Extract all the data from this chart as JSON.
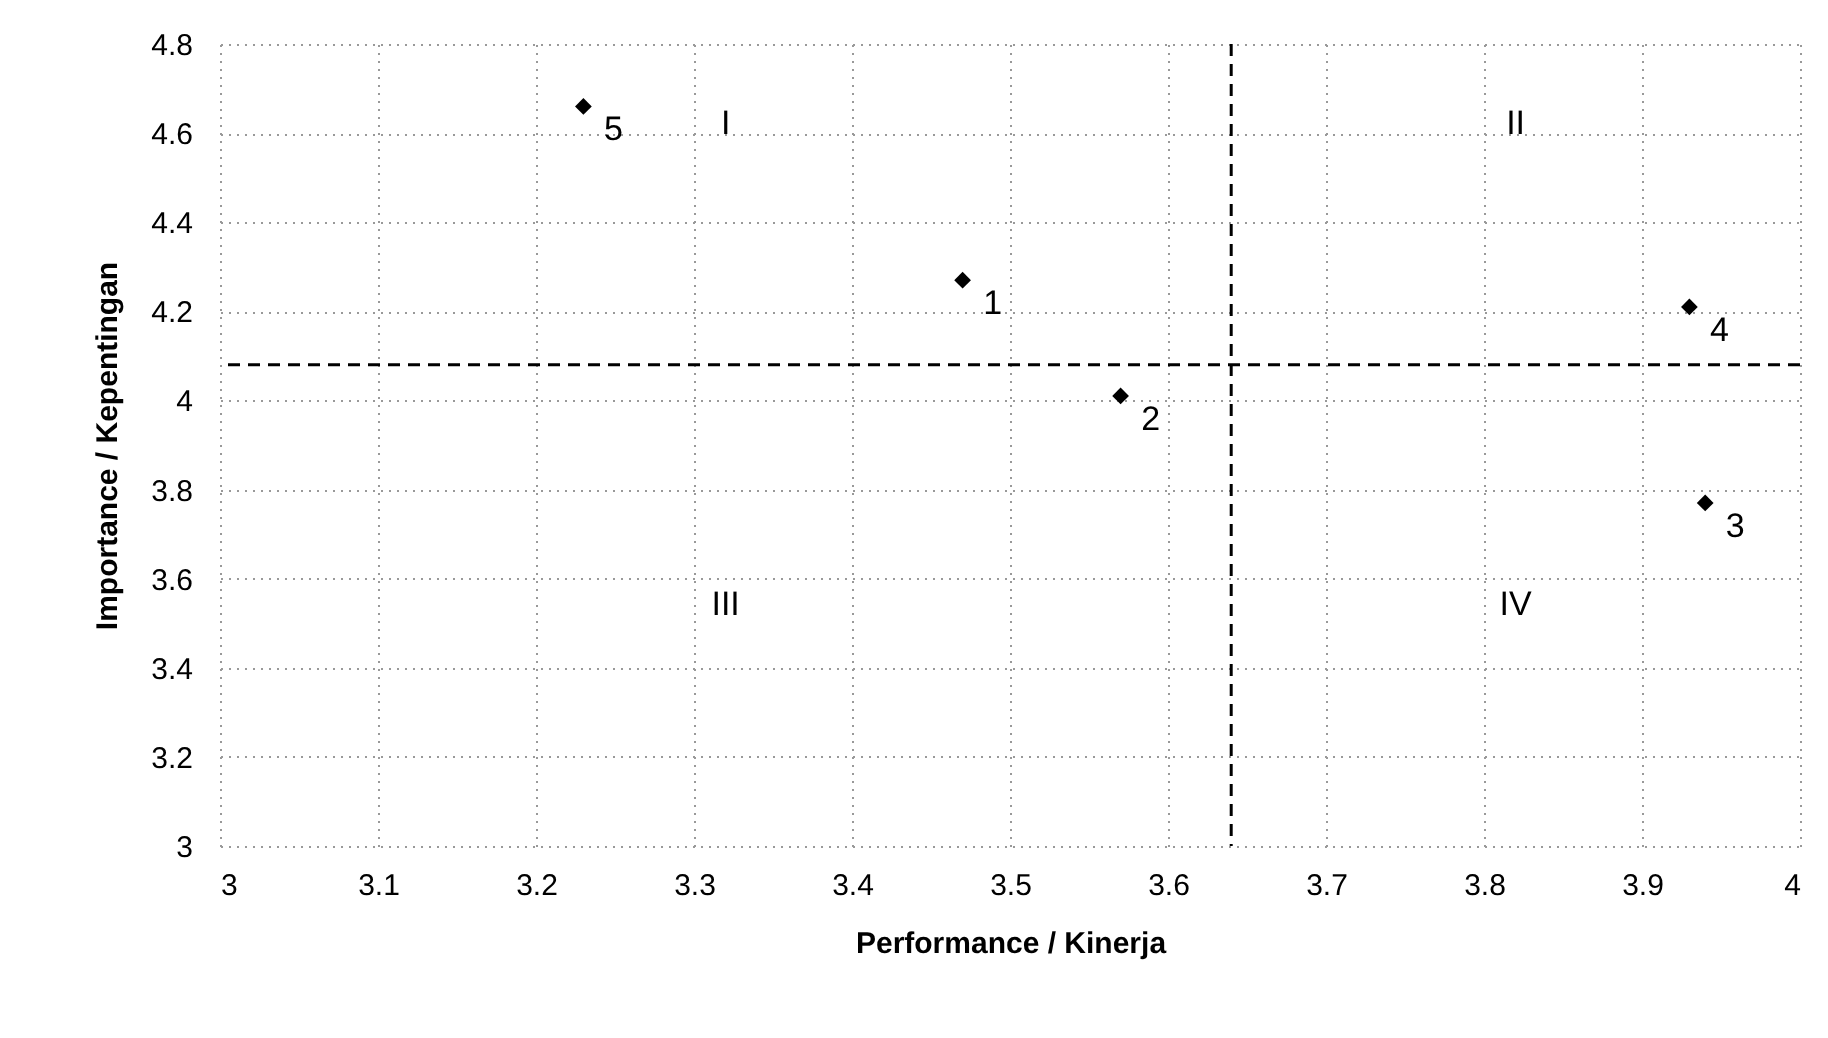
{
  "chart_data": {
    "type": "scatter",
    "xlabel": "Performance / Kinerja",
    "ylabel": "Importance / Kepentingan",
    "x": [
      3.47,
      3.57,
      3.94,
      3.93,
      3.23
    ],
    "series": [
      {
        "color": "#000000",
        "values": [
          4.27,
          4.01,
          3.77,
          4.21,
          4.66
        ]
      }
    ],
    "marker": "diamond",
    "grid": true,
    "xlim": [
      3,
      4
    ],
    "xticks": [
      3,
      3.1,
      3.2,
      3.3,
      3.4,
      3.5,
      3.6,
      3.7,
      3.8,
      3.9,
      4
    ],
    "ylim": [
      3,
      4.8
    ],
    "yticks": [
      3,
      3.2,
      3.4,
      3.6,
      3.8,
      4,
      4.2,
      4.4,
      4.6,
      4.8
    ],
    "ref_lines": [
      {
        "axis": "x",
        "value": 3.64,
        "color": "#000000",
        "line_style": "dashed"
      },
      {
        "axis": "y",
        "value": 4.08,
        "color": "#000000",
        "line_style": "dashed"
      }
    ],
    "annotations": [
      {
        "text": "1",
        "x": 3.47,
        "y": 4.27
      },
      {
        "text": "2",
        "x": 3.57,
        "y": 4.01
      },
      {
        "text": "3",
        "x": 3.94,
        "y": 3.77
      },
      {
        "text": "4",
        "x": 3.93,
        "y": 4.21
      },
      {
        "text": "5",
        "x": 3.23,
        "y": 4.66
      },
      "I",
      "II",
      "III",
      "IV"
    ]
  }
}
